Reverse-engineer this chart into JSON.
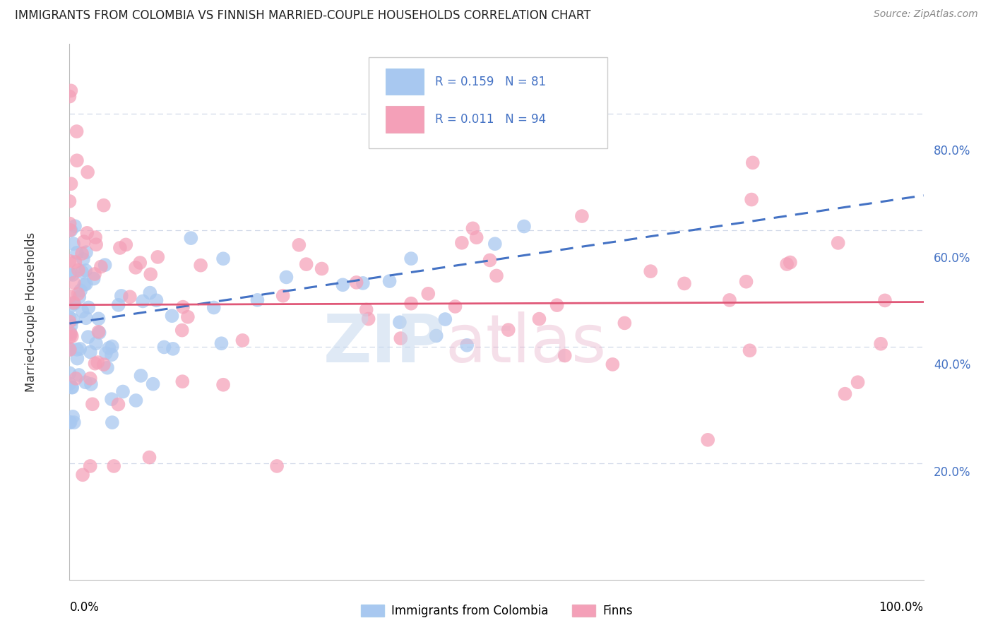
{
  "title": "IMMIGRANTS FROM COLOMBIA VS FINNISH MARRIED-COUPLE HOUSEHOLDS CORRELATION CHART",
  "source": "Source: ZipAtlas.com",
  "ylabel": "Married-couple Households",
  "legend_blue_R": "0.159",
  "legend_blue_N": "81",
  "legend_pink_R": "0.011",
  "legend_pink_N": "94",
  "legend_label_blue": "Immigrants from Colombia",
  "legend_label_pink": "Finns",
  "blue_color": "#a8c8f0",
  "pink_color": "#f4a0b8",
  "blue_line_color": "#4472c4",
  "pink_line_color": "#e05878",
  "right_label_color": "#4472c4",
  "grid_color": "#d0d8e8",
  "title_color": "#222222",
  "source_color": "#888888",
  "ylabel_right": [
    "20.0%",
    "40.0%",
    "60.0%",
    "80.0%"
  ],
  "ylabel_right_pos": [
    0.2,
    0.4,
    0.6,
    0.8
  ],
  "xlim": [
    0.0,
    1.0
  ],
  "ylim": [
    0.0,
    0.92
  ],
  "blue_intercept": 0.44,
  "blue_slope": 0.22,
  "pink_intercept": 0.472,
  "pink_slope": 0.005,
  "seed": 17
}
